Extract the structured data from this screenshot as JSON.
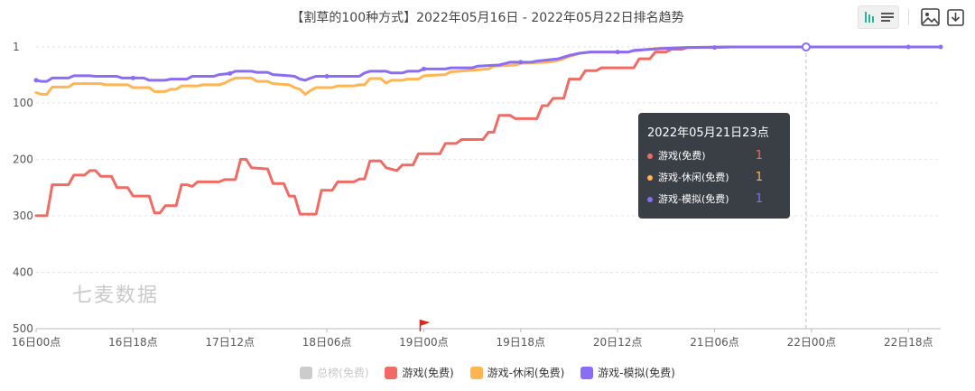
{
  "chart_data": {
    "type": "line",
    "title": "【割草的100种方式】2022年05月16日 - 2022年05月22日排名趋势",
    "xlabel": "",
    "ylabel": "",
    "y_inverted": true,
    "ylim": [
      1,
      500
    ],
    "y_ticks": [
      "1",
      "100",
      "200",
      "300",
      "400",
      "500"
    ],
    "x_ticks": [
      "16日00点",
      "16日18点",
      "17日12点",
      "18日06点",
      "19日00点",
      "19日18点",
      "20日12点",
      "21日06点",
      "22日00点",
      "22日18点"
    ],
    "x_unit": "hours since 16日00点",
    "grid": true,
    "legend_position": "bottom",
    "series": [
      {
        "name": "总榜(免费)",
        "color": "#cccccc",
        "hidden": true,
        "points": []
      },
      {
        "name": "游戏(免费)",
        "color": "#f06b64",
        "points": [
          [
            0,
            300
          ],
          [
            2,
            300
          ],
          [
            3,
            245
          ],
          [
            6,
            245
          ],
          [
            7,
            228
          ],
          [
            9,
            228
          ],
          [
            10,
            220
          ],
          [
            11,
            220
          ],
          [
            12,
            230
          ],
          [
            14,
            230
          ],
          [
            15,
            250
          ],
          [
            17,
            250
          ],
          [
            18,
            265
          ],
          [
            21,
            265
          ],
          [
            22,
            295
          ],
          [
            23,
            295
          ],
          [
            24,
            282
          ],
          [
            26,
            282
          ],
          [
            27,
            245
          ],
          [
            28,
            245
          ],
          [
            29,
            248
          ],
          [
            30,
            240
          ],
          [
            34,
            240
          ],
          [
            35,
            236
          ],
          [
            37,
            236
          ],
          [
            38,
            200
          ],
          [
            39,
            200
          ],
          [
            40,
            215
          ],
          [
            43,
            217
          ],
          [
            44,
            243
          ],
          [
            46,
            243
          ],
          [
            47,
            265
          ],
          [
            48,
            265
          ],
          [
            49,
            297
          ],
          [
            52,
            297
          ],
          [
            53,
            255
          ],
          [
            55,
            255
          ],
          [
            56,
            240
          ],
          [
            59,
            240
          ],
          [
            60,
            235
          ],
          [
            61,
            235
          ],
          [
            62,
            203
          ],
          [
            64,
            203
          ],
          [
            65,
            215
          ],
          [
            67,
            220
          ],
          [
            68,
            210
          ],
          [
            70,
            210
          ],
          [
            71,
            190
          ],
          [
            73,
            190
          ],
          [
            74,
            190
          ],
          [
            75,
            190
          ],
          [
            76,
            172
          ],
          [
            78,
            172
          ],
          [
            79,
            165
          ],
          [
            83,
            165
          ],
          [
            84,
            152
          ],
          [
            85,
            152
          ],
          [
            86,
            122
          ],
          [
            88,
            122
          ],
          [
            89,
            128
          ],
          [
            93,
            128
          ],
          [
            94,
            105
          ],
          [
            95,
            105
          ],
          [
            96,
            92
          ],
          [
            98,
            92
          ],
          [
            99,
            58
          ],
          [
            101,
            58
          ],
          [
            102,
            43
          ],
          [
            104,
            43
          ],
          [
            105,
            38
          ],
          [
            111,
            38
          ],
          [
            112,
            22
          ],
          [
            114,
            22
          ],
          [
            115,
            10
          ],
          [
            117,
            10
          ],
          [
            118,
            5
          ],
          [
            120,
            5
          ],
          [
            121,
            2
          ],
          [
            126,
            2
          ],
          [
            129,
            1
          ],
          [
            168,
            1
          ]
        ]
      },
      {
        "name": "游戏-休闲(免费)",
        "color": "#ffb552",
        "points": [
          [
            0,
            82
          ],
          [
            1,
            85
          ],
          [
            2,
            85
          ],
          [
            3,
            72
          ],
          [
            6,
            72
          ],
          [
            7,
            66
          ],
          [
            12,
            66
          ],
          [
            13,
            68
          ],
          [
            17,
            68
          ],
          [
            18,
            73
          ],
          [
            21,
            73
          ],
          [
            22,
            80
          ],
          [
            24,
            80
          ],
          [
            25,
            76
          ],
          [
            26,
            76
          ],
          [
            27,
            70
          ],
          [
            30,
            70
          ],
          [
            31,
            68
          ],
          [
            34,
            68
          ],
          [
            35,
            65
          ],
          [
            36,
            60
          ],
          [
            37,
            56
          ],
          [
            40,
            56
          ],
          [
            41,
            62
          ],
          [
            43,
            62
          ],
          [
            44,
            66
          ],
          [
            47,
            68
          ],
          [
            48,
            73
          ],
          [
            49,
            76
          ],
          [
            50,
            85
          ],
          [
            51,
            78
          ],
          [
            52,
            73
          ],
          [
            55,
            73
          ],
          [
            56,
            70
          ],
          [
            59,
            70
          ],
          [
            60,
            68
          ],
          [
            61,
            68
          ],
          [
            62,
            57
          ],
          [
            64,
            57
          ],
          [
            65,
            65
          ],
          [
            66,
            60
          ],
          [
            68,
            60
          ],
          [
            69,
            58
          ],
          [
            71,
            58
          ],
          [
            72,
            52
          ],
          [
            76,
            50
          ],
          [
            77,
            45
          ],
          [
            80,
            43
          ],
          [
            84,
            40
          ],
          [
            85,
            35
          ],
          [
            89,
            33
          ],
          [
            90,
            30
          ],
          [
            95,
            28
          ],
          [
            97,
            25
          ],
          [
            99,
            18
          ],
          [
            101,
            12
          ],
          [
            103,
            10
          ],
          [
            110,
            10
          ],
          [
            111,
            8
          ],
          [
            116,
            3
          ],
          [
            121,
            2
          ],
          [
            129,
            1
          ],
          [
            168,
            1
          ]
        ]
      },
      {
        "name": "游戏-模拟(免费)",
        "color": "#8a6cf5",
        "points": [
          [
            0,
            60
          ],
          [
            1,
            62
          ],
          [
            2,
            62
          ],
          [
            3,
            56
          ],
          [
            6,
            56
          ],
          [
            7,
            52
          ],
          [
            10,
            52
          ],
          [
            11,
            53
          ],
          [
            15,
            53
          ],
          [
            16,
            56
          ],
          [
            20,
            56
          ],
          [
            21,
            60
          ],
          [
            24,
            60
          ],
          [
            25,
            58
          ],
          [
            28,
            58
          ],
          [
            29,
            53
          ],
          [
            33,
            53
          ],
          [
            34,
            50
          ],
          [
            36,
            48
          ],
          [
            37,
            44
          ],
          [
            40,
            44
          ],
          [
            41,
            46
          ],
          [
            43,
            46
          ],
          [
            44,
            50
          ],
          [
            47,
            52
          ],
          [
            48,
            53
          ],
          [
            49,
            58
          ],
          [
            50,
            60
          ],
          [
            51,
            56
          ],
          [
            52,
            53
          ],
          [
            60,
            53
          ],
          [
            61,
            47
          ],
          [
            62,
            44
          ],
          [
            65,
            44
          ],
          [
            66,
            47
          ],
          [
            68,
            47
          ],
          [
            69,
            44
          ],
          [
            71,
            44
          ],
          [
            72,
            40
          ],
          [
            76,
            40
          ],
          [
            77,
            38
          ],
          [
            81,
            38
          ],
          [
            82,
            35
          ],
          [
            86,
            33
          ],
          [
            88,
            28
          ],
          [
            92,
            28
          ],
          [
            93,
            26
          ],
          [
            95,
            24
          ],
          [
            97,
            22
          ],
          [
            99,
            16
          ],
          [
            101,
            12
          ],
          [
            103,
            10
          ],
          [
            110,
            10
          ],
          [
            111,
            7
          ],
          [
            116,
            4
          ],
          [
            121,
            2
          ],
          [
            129,
            1
          ],
          [
            168,
            1
          ]
        ]
      }
    ]
  },
  "tooltip": {
    "title": "2022年05月21日23点",
    "rows": [
      {
        "name": "游戏(免费)",
        "value": "1",
        "color": "#f06b64"
      },
      {
        "name": "游戏-休闲(免费)",
        "value": "1",
        "color": "#ffb552"
      },
      {
        "name": "游戏-模拟(免费)",
        "value": "1",
        "color": "#8a6cf5"
      }
    ]
  },
  "watermark": "七麦数据",
  "toolbar": {
    "toggle_icon": "bar-line-toggle-icon",
    "image_icon": "save-image-icon",
    "download_icon": "download-icon"
  },
  "marker_icon": "red-flag-icon"
}
